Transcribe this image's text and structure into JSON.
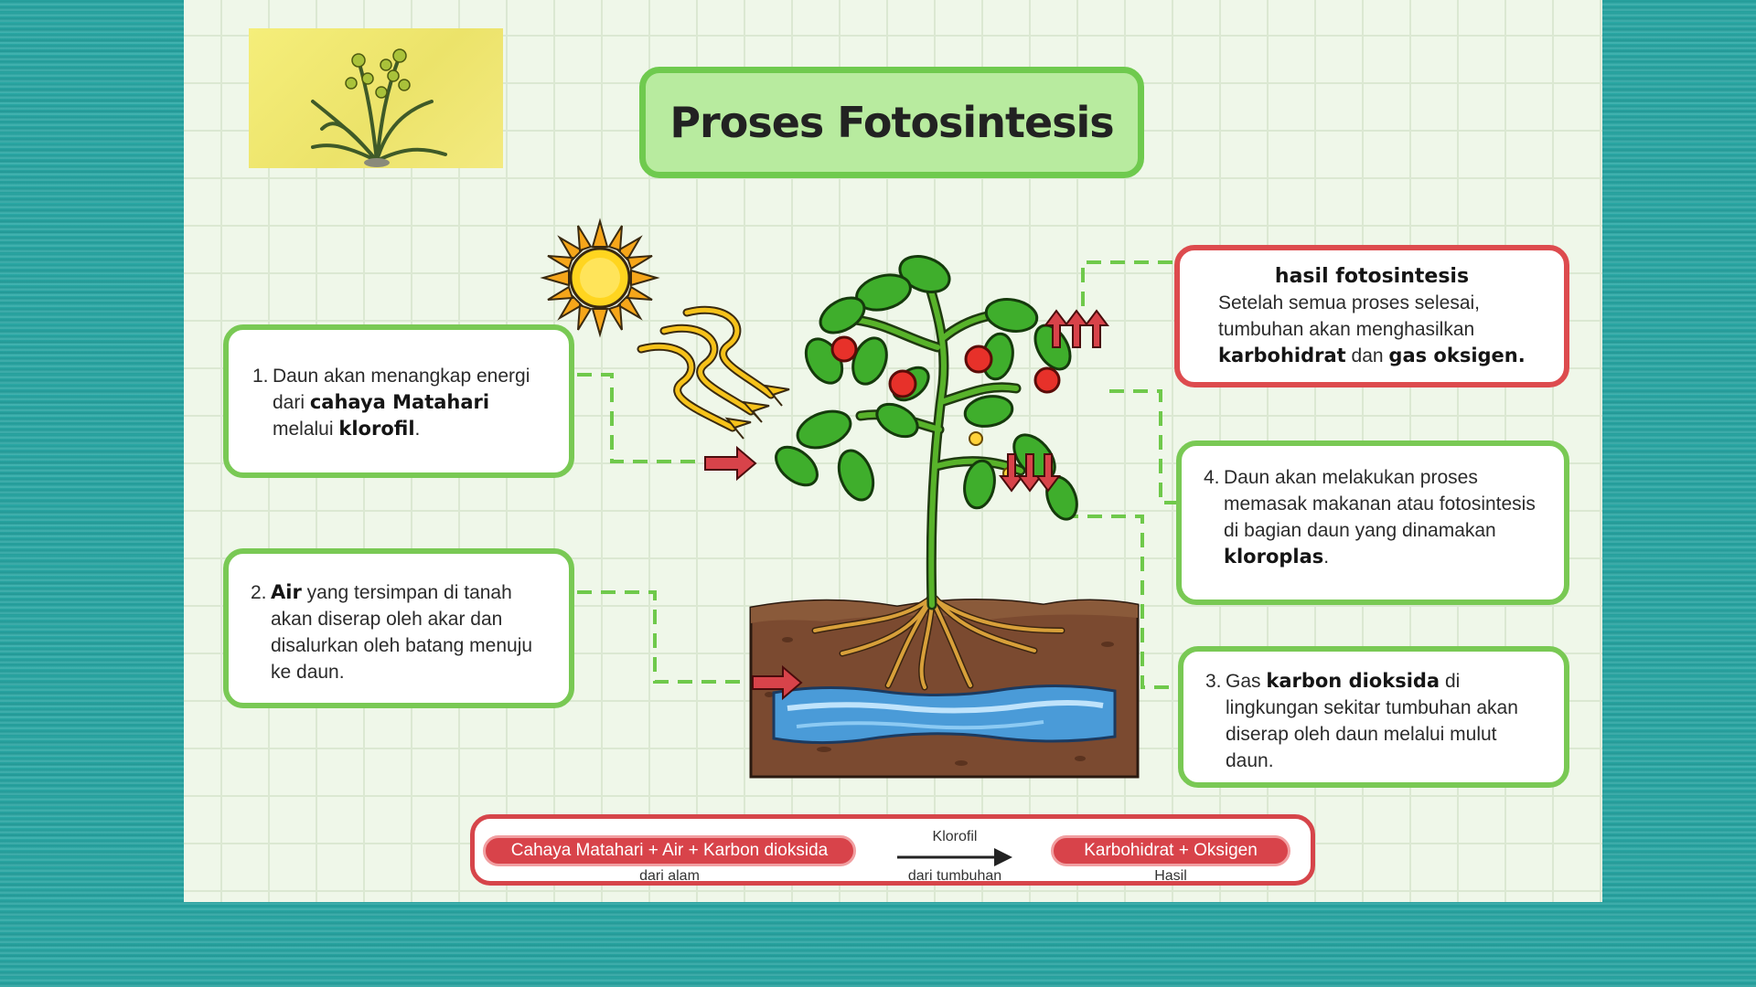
{
  "title": "Proses Fotosintesis",
  "photo": {
    "icon": "orchid-plant-photo"
  },
  "step1": {
    "number": "1.",
    "parts": [
      "Daun akan menangkap energi dari ",
      "cahaya Matahari",
      " melalui ",
      "klorofil",
      "."
    ]
  },
  "step2": {
    "number": "2.",
    "parts": [
      "Air",
      " yang tersimpan di tanah akan diserap oleh akar dan disalurkan oleh batang menuju ke daun."
    ]
  },
  "step3": {
    "number": "3.",
    "parts": [
      "Gas ",
      "karbon dioksida",
      " di lingkungan sekitar tumbuhan akan diserap oleh daun melalui mulut daun."
    ]
  },
  "step4": {
    "number": "4.",
    "parts": [
      "Daun akan melakukan proses memasak makanan atau fotosintesis di bagian daun yang dinamakan ",
      "kloroplas",
      "."
    ]
  },
  "result": {
    "title": "hasil fotosintesis",
    "parts": [
      "Setelah semua proses selesai, tumbuhan akan menghasilkan ",
      "karbohidrat",
      " dan ",
      "gas oksigen."
    ]
  },
  "formula": {
    "inputs": "Cahaya Matahari + Air + Karbon dioksida",
    "inputs_label": "dari alam",
    "arrow_label": "Klorofil",
    "arrow_sublabel": "dari tumbuhan",
    "outputs": "Karbohidrat + Oksigen",
    "outputs_label": "Hasil"
  },
  "colors": {
    "background": "#2aa9a6",
    "slide": "#eff7e9",
    "green_border": "#79c954",
    "red_border": "#dd4b4e",
    "title_fill": "#b8eb9f",
    "pill": "#d8434a"
  },
  "icons": [
    "sun-icon",
    "sunlight-rays-icon",
    "tomato-plant-illustration",
    "soil-cross-section",
    "groundwater-icon",
    "arrow-right-icon",
    "arrow-up-icon",
    "arrow-down-icon"
  ]
}
